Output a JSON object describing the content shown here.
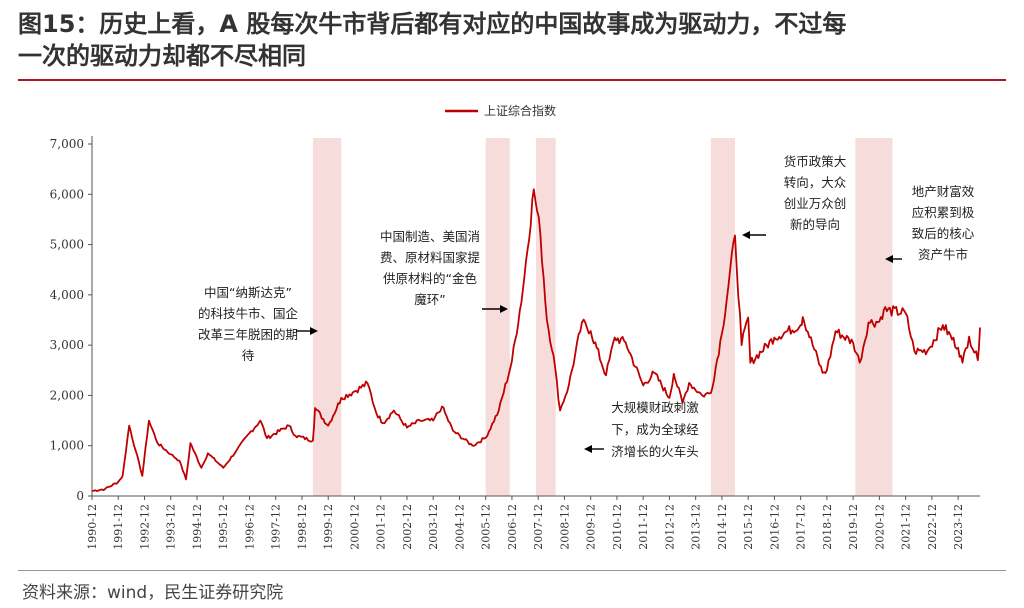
{
  "title": {
    "line1": "图15：历史上看，A 股每次牛市背后都有对应的中国故事成为驱动力，不过每",
    "line2": "一次的驱动力却都不尽相同"
  },
  "source": "资料来源：wind，民生证券研究院",
  "colors": {
    "line": "#c00000",
    "shade": "#f7dcdc",
    "title_rule": "#b0122a"
  },
  "chart_data": {
    "type": "line",
    "series": [
      {
        "name": "上证综合指数",
        "points": [
          [
            "1990-12",
            100
          ],
          [
            "1991-06",
            140
          ],
          [
            "1991-12",
            280
          ],
          [
            "1992-02",
            400
          ],
          [
            "1992-05",
            1400
          ],
          [
            "1992-08",
            900
          ],
          [
            "1992-11",
            400
          ],
          [
            "1993-02",
            1500
          ],
          [
            "1993-06",
            1050
          ],
          [
            "1993-12",
            830
          ],
          [
            "1994-04",
            700
          ],
          [
            "1994-07",
            330
          ],
          [
            "1994-09",
            1050
          ],
          [
            "1995-02",
            560
          ],
          [
            "1995-05",
            850
          ],
          [
            "1995-12",
            560
          ],
          [
            "1996-06",
            900
          ],
          [
            "1996-12",
            1250
          ],
          [
            "1997-05",
            1500
          ],
          [
            "1997-08",
            1150
          ],
          [
            "1998-06",
            1400
          ],
          [
            "1998-09",
            1200
          ],
          [
            "1999-05",
            1100
          ],
          [
            "1999-06",
            1750
          ],
          [
            "1999-12",
            1400
          ],
          [
            "2000-06",
            1950
          ],
          [
            "2000-12",
            2080
          ],
          [
            "2001-06",
            2240
          ],
          [
            "2001-10",
            1650
          ],
          [
            "2002-01",
            1450
          ],
          [
            "2002-06",
            1700
          ],
          [
            "2002-12",
            1360
          ],
          [
            "2003-06",
            1500
          ],
          [
            "2003-12",
            1500
          ],
          [
            "2004-04",
            1780
          ],
          [
            "2004-09",
            1300
          ],
          [
            "2005-06",
            1000
          ],
          [
            "2005-12",
            1160
          ],
          [
            "2006-06",
            1700
          ],
          [
            "2006-12",
            2680
          ],
          [
            "2007-05",
            4100
          ],
          [
            "2007-10",
            6100
          ],
          [
            "2008-01",
            5200
          ],
          [
            "2008-04",
            3500
          ],
          [
            "2008-07",
            2800
          ],
          [
            "2008-10",
            1700
          ],
          [
            "2009-02",
            2200
          ],
          [
            "2009-08",
            3450
          ],
          [
            "2009-12",
            3280
          ],
          [
            "2010-07",
            2400
          ],
          [
            "2010-11",
            3150
          ],
          [
            "2011-04",
            3050
          ],
          [
            "2011-12",
            2200
          ],
          [
            "2012-05",
            2450
          ],
          [
            "2012-12",
            1950
          ],
          [
            "2013-02",
            2430
          ],
          [
            "2013-06",
            1850
          ],
          [
            "2013-09",
            2250
          ],
          [
            "2014-03",
            2000
          ],
          [
            "2014-07",
            2050
          ],
          [
            "2014-12",
            3230
          ],
          [
            "2015-06",
            5180
          ],
          [
            "2015-09",
            3000
          ],
          [
            "2015-12",
            3550
          ],
          [
            "2016-01",
            2650
          ],
          [
            "2016-12",
            3150
          ],
          [
            "2017-12",
            3400
          ],
          [
            "2018-01",
            3560
          ],
          [
            "2018-10",
            2450
          ],
          [
            "2018-12",
            2500
          ],
          [
            "2019-04",
            3280
          ],
          [
            "2019-12",
            3050
          ],
          [
            "2020-03",
            2650
          ],
          [
            "2020-07",
            3450
          ],
          [
            "2020-12",
            3470
          ],
          [
            "2021-02",
            3700
          ],
          [
            "2021-12",
            3640
          ],
          [
            "2022-04",
            2880
          ],
          [
            "2022-10",
            2890
          ],
          [
            "2023-05",
            3400
          ],
          [
            "2023-12",
            2950
          ],
          [
            "2024-02",
            2650
          ],
          [
            "2024-05",
            3170
          ],
          [
            "2024-09",
            2700
          ],
          [
            "2024-10",
            3350
          ]
        ]
      }
    ],
    "x_range": [
      "1990-12",
      "2024-10"
    ],
    "ylim": [
      0,
      7000
    ],
    "yticks": [
      0,
      1000,
      2000,
      3000,
      4000,
      5000,
      6000,
      7000
    ],
    "ytick_labels": [
      "0",
      "1,000",
      "2,000",
      "3,000",
      "4,000",
      "5,000",
      "6,000",
      "7,000"
    ],
    "xticks": [
      "1990-12",
      "1991-12",
      "1992-12",
      "1993-12",
      "1994-12",
      "1995-12",
      "1996-12",
      "1997-12",
      "1998-12",
      "1999-12",
      "2000-12",
      "2001-12",
      "2002-12",
      "2003-12",
      "2004-12",
      "2005-12",
      "2006-12",
      "2007-12",
      "2008-12",
      "2009-12",
      "2010-12",
      "2011-12",
      "2012-12",
      "2013-12",
      "2014-12",
      "2015-12",
      "2016-12",
      "2017-12",
      "2018-12",
      "2019-12",
      "2020-12",
      "2021-12",
      "2022-12",
      "2023-12"
    ],
    "shaded_periods": [
      [
        "1999-05",
        "2000-06"
      ],
      [
        "2005-12",
        "2006-11"
      ],
      [
        "2007-11",
        "2008-08"
      ],
      [
        "2014-07",
        "2015-06"
      ],
      [
        "2020-01",
        "2021-06"
      ]
    ],
    "legend_position": "top-center",
    "grid": false,
    "annotations": [
      {
        "lines": [
          "中国“纳斯达克”",
          "的科技牛市、国企",
          "改革三年脱困的期",
          "待"
        ],
        "arrow": "right"
      },
      {
        "lines": [
          "中国制造、美国消",
          "费、原材料国家提",
          "供原材料的“金色",
          "魔环”"
        ],
        "arrow": "right"
      },
      {
        "lines": [
          "大规模财政刺激",
          "下，成为全球经",
          "济增长的火车头"
        ],
        "arrow": "left"
      },
      {
        "lines": [
          "货币政策大",
          "转向，大众",
          "创业万众创",
          "新的导向"
        ],
        "arrow": "left"
      },
      {
        "lines": [
          "地产财富效",
          "应积累到极",
          "致后的核心",
          "资产牛市"
        ],
        "arrow": "left"
      }
    ]
  }
}
